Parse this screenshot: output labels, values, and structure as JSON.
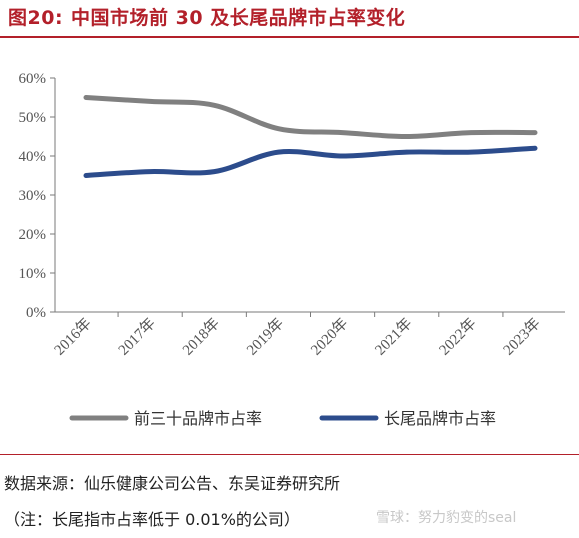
{
  "header": {
    "figure_label": "图20:",
    "title": "中国市场前 30 及长尾品牌市占率变化"
  },
  "chart_data": {
    "type": "line",
    "categories": [
      "2016年",
      "2017年",
      "2018年",
      "2019年",
      "2020年",
      "2021年",
      "2022年",
      "2023年"
    ],
    "series": [
      {
        "name": "前三十品牌市占率",
        "values": [
          55,
          54,
          53,
          47,
          46,
          45,
          46,
          46
        ],
        "color": "#808080"
      },
      {
        "name": "长尾品牌市占率",
        "values": [
          35,
          36,
          36,
          41,
          40,
          41,
          41,
          42
        ],
        "color": "#2c4c8c"
      }
    ],
    "ylim": [
      0,
      60
    ],
    "yticks": [
      "0%",
      "10%",
      "20%",
      "30%",
      "40%",
      "50%",
      "60%"
    ],
    "ytick_values": [
      0,
      10,
      20,
      30,
      40,
      50,
      60
    ],
    "grid": false,
    "legend_position": "bottom"
  },
  "footer": {
    "source": "数据来源：仙乐健康公司公告、东吴证券研究所",
    "note": "（注：长尾指市占率低于 0.01%的公司）",
    "watermark": "雪球：努力豹变的seal"
  }
}
